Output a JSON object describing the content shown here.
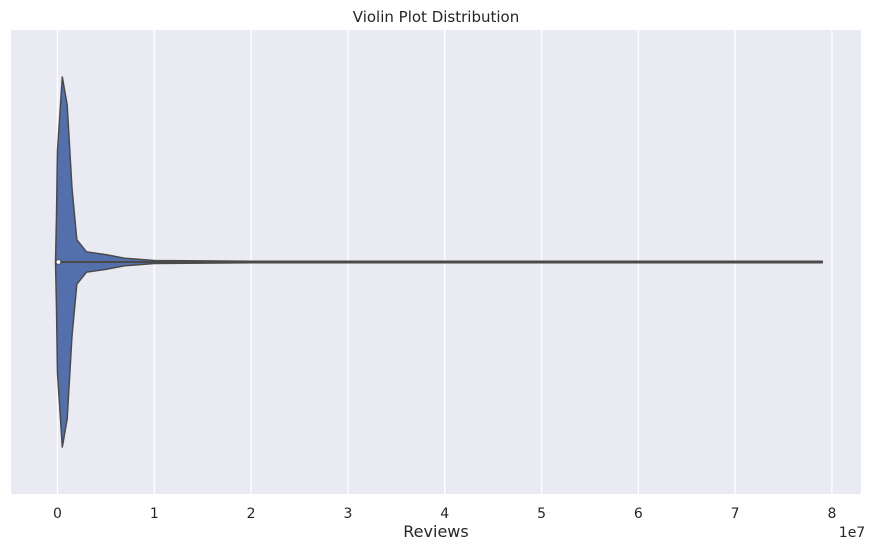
{
  "chart_data": {
    "type": "violin",
    "title": "Violin Plot Distribution",
    "xlabel": "Reviews",
    "ylabel": "",
    "x_scale_label": "1e7",
    "xlim": [
      -0.48,
      8.3
    ],
    "xticks": [
      0,
      1,
      2,
      3,
      4,
      5,
      6,
      7,
      8
    ],
    "xtick_labels": [
      "0",
      "1",
      "2",
      "3",
      "4",
      "5",
      "6",
      "7",
      "8"
    ],
    "grid": true,
    "orientation": "horizontal",
    "violin": {
      "range_min": -0.02,
      "range_max": 7.9,
      "median": 0.01,
      "q1": -0.01,
      "q3": 0.03,
      "density_profile": {
        "x": [
          -0.02,
          -0.01,
          0.0,
          0.05,
          0.1,
          0.15,
          0.2,
          0.3,
          0.5,
          0.7,
          1.0,
          2.0,
          5.0,
          7.9
        ],
        "half_width_fraction": [
          0.0,
          0.25,
          0.6,
          1.0,
          0.85,
          0.4,
          0.12,
          0.055,
          0.04,
          0.02,
          0.008,
          0.004,
          0.004,
          0.004
        ]
      }
    },
    "colors": {
      "background": "#EAEAF2",
      "grid": "#FFFFFF",
      "violin_fill": "#5470AC",
      "violin_edge": "#4A4A4A",
      "median_marker": "#FFFFFF"
    }
  }
}
